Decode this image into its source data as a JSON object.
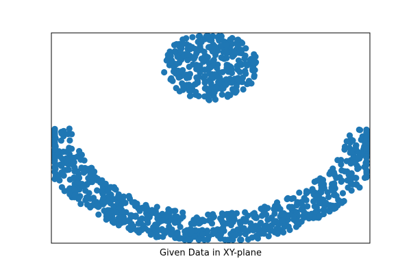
{
  "chart_data": {
    "type": "scatter",
    "title": "",
    "xlabel": "Given Data in XY-plane",
    "ylabel": "",
    "axes_ticks_visible": false,
    "grid": false,
    "legend": "none",
    "marker_color": "#1f77b4",
    "xlim": [
      -1.35,
      1.35
    ],
    "ylim": [
      -1.45,
      1.05
    ],
    "clusters": [
      {
        "shape": "disk",
        "center": [
          0,
          0.65
        ],
        "radius_range": [
          0,
          0.4
        ],
        "count": 320
      },
      {
        "shape": "annulus-lower-arc",
        "center": [
          0,
          0.1
        ],
        "radius_range": [
          1.2,
          1.55
        ],
        "angle_range_deg": [
          188,
          352
        ],
        "count": 820
      }
    ]
  }
}
